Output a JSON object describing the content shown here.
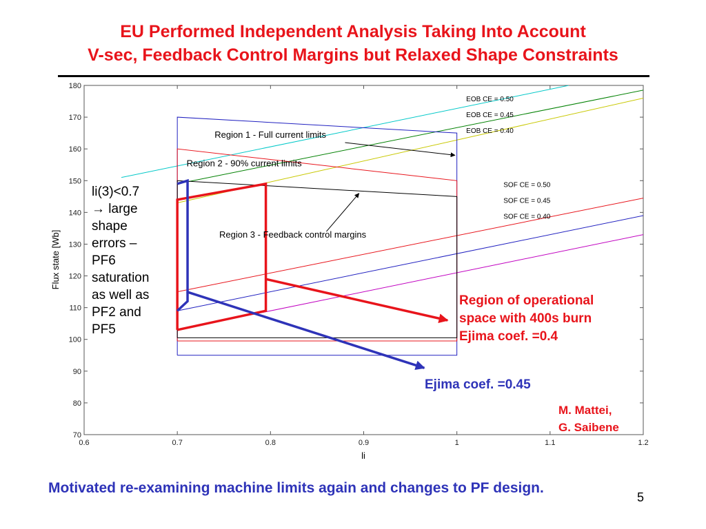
{
  "slide": {
    "title_line1": "EU Performed Independent Analysis Taking Into Account",
    "title_line2": "V-sec, Feedback Control Margins but Relaxed Shape Constraints",
    "left_note_lines": [
      "li(3)<0.7",
      "→ large",
      "shape",
      "errors –",
      "PF6",
      "saturation",
      "as well as",
      "PF2 and",
      "PF5"
    ],
    "operational_note_lines": [
      "Region of operational",
      "space with 400s burn",
      "Ejima coef. =0.4"
    ],
    "ejima_note": "Ejima coef. =0.45",
    "author_line1": "M. Mattei,",
    "author_line2": "G. Saibene",
    "bottom_note": "Motivated re-examining machine limits again and changes to PF design.",
    "page_number": "5"
  },
  "chart_data": {
    "type": "line",
    "xlabel": "li",
    "ylabel": "Flux state [Wb]",
    "xlim": [
      0.6,
      1.2
    ],
    "ylim": [
      70,
      180
    ],
    "xticks": [
      "0.6",
      "0.7",
      "0.8",
      "0.9",
      "1",
      "1.1",
      "1.2"
    ],
    "yticks": [
      "70",
      "80",
      "90",
      "100",
      "110",
      "120",
      "130",
      "140",
      "150",
      "160",
      "170",
      "180"
    ],
    "grid": false,
    "series": [
      {
        "name": "EOB CE = 0.50",
        "color": "#00c8c8",
        "x": [
          0.64,
          1.12
        ],
        "y": [
          151,
          180
        ]
      },
      {
        "name": "EOB CE = 0.45",
        "color": "#008000",
        "x": [
          0.7,
          1.2
        ],
        "y": [
          149,
          178.5
        ]
      },
      {
        "name": "EOB CE = 0.40",
        "color": "#c8c800",
        "x": [
          0.7,
          1.2
        ],
        "y": [
          143,
          176
        ]
      },
      {
        "name": "SOF CE = 0.50",
        "color": "#e8141b",
        "x": [
          0.7,
          1.2
        ],
        "y": [
          115,
          144.5
        ]
      },
      {
        "name": "SOF CE = 0.45",
        "color": "#2020c0",
        "x": [
          0.7,
          1.2
        ],
        "y": [
          109,
          139
        ]
      },
      {
        "name": "SOF CE = 0.40",
        "color": "#c000c0",
        "x": [
          0.7,
          1.2
        ],
        "y": [
          103,
          133
        ]
      }
    ],
    "regions": [
      {
        "name": "Region 1 - Full current limits",
        "color": "#2020c0",
        "x": [
          0.7,
          0.7,
          1.0,
          1.0,
          0.7
        ],
        "y": [
          95,
          170,
          165,
          95,
          95
        ]
      },
      {
        "name": "Region 2 - 90% current limits",
        "color": "#e8141b",
        "x": [
          0.7,
          0.7,
          1.0,
          1.0,
          0.7
        ],
        "y": [
          99.5,
          160,
          150,
          99.5,
          99.5
        ]
      },
      {
        "name": "Region 3 - Feedback control margins",
        "color": "#000000",
        "x": [
          0.7,
          0.7,
          1.0,
          1.0,
          0.7
        ],
        "y": [
          100.5,
          150,
          145,
          100.5,
          100.5
        ]
      }
    ],
    "operating_regions": [
      {
        "note": "Ejima coef. =0.4",
        "color": "#e8141b",
        "x": [
          0.7,
          0.7,
          0.795,
          0.795,
          0.7
        ],
        "y": [
          103,
          144,
          149,
          109,
          103
        ]
      },
      {
        "note": "Ejima coef. =0.45",
        "color": "#2e33b8",
        "x": [
          0.7,
          0.711,
          0.711,
          0.7
        ],
        "y": [
          109,
          112,
          150,
          149
        ]
      }
    ],
    "annotations": [
      {
        "text": "Region 1 - Full current limits",
        "x": 0.74,
        "y": 163.5,
        "arrow_from": [
          0.88,
          162
        ],
        "arrow_to": [
          0.998,
          158
        ]
      },
      {
        "text": "Region 2 - 90% current limits",
        "x": 0.71,
        "y": 154.5
      },
      {
        "text": "Region 3 - Feedback control margins",
        "x": 0.745,
        "y": 132,
        "arrow_from": [
          0.86,
          134
        ],
        "arrow_to": [
          0.895,
          146
        ]
      },
      {
        "text": "EOB CE = 0.50",
        "x": 1.01,
        "y": 175
      },
      {
        "text": "EOB CE = 0.45",
        "x": 1.01,
        "y": 170
      },
      {
        "text": "EOB CE = 0.40",
        "x": 1.01,
        "y": 165
      },
      {
        "text": "SOF CE = 0.50",
        "x": 1.05,
        "y": 148
      },
      {
        "text": "SOF CE = 0.45",
        "x": 1.05,
        "y": 143
      },
      {
        "text": "SOF CE = 0.40",
        "x": 1.05,
        "y": 138
      }
    ],
    "callout_arrows": [
      {
        "color": "#e8141b",
        "from": [
          0.795,
          119
        ],
        "to": [
          0.99,
          106
        ]
      },
      {
        "color": "#2e33b8",
        "from": [
          0.71,
          115
        ],
        "to": [
          0.965,
          91
        ]
      }
    ]
  }
}
